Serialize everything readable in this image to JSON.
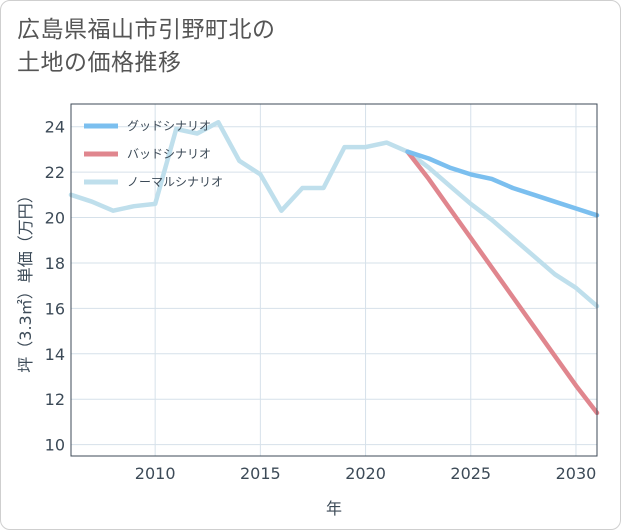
{
  "header": {
    "title_line1": "広島県福山市引野町北の",
    "title_line2": "土地の価格推移"
  },
  "chart_data": {
    "type": "line",
    "title": "広島県福山市引野町北の土地の価格推移",
    "xlabel": "年",
    "ylabel": "坪（3.3㎡）単価（万円）",
    "xlim": [
      2006,
      2031
    ],
    "ylim": [
      9.5,
      25
    ],
    "xticks": [
      2010,
      2015,
      2020,
      2025,
      2030
    ],
    "yticks": [
      10,
      12,
      14,
      16,
      18,
      20,
      22,
      24
    ],
    "legend_position": "top-left",
    "series": [
      {
        "name": "グッドシナリオ",
        "color": "#7bbfef",
        "x": [
          2022,
          2023,
          2024,
          2025,
          2026,
          2027,
          2028,
          2029,
          2030,
          2031
        ],
        "y": [
          22.9,
          22.6,
          22.2,
          21.9,
          21.7,
          21.3,
          21.0,
          20.7,
          20.4,
          20.1
        ]
      },
      {
        "name": "バッドシナリオ",
        "color": "#e0868e",
        "x": [
          2022,
          2023,
          2024,
          2025,
          2026,
          2027,
          2028,
          2029,
          2030,
          2031
        ],
        "y": [
          22.9,
          21.7,
          20.4,
          19.1,
          17.8,
          16.5,
          15.2,
          13.9,
          12.6,
          11.4
        ]
      },
      {
        "name": "ノーマルシナリオ",
        "color": "#bfdfec",
        "x": [
          2006,
          2007,
          2008,
          2009,
          2010,
          2011,
          2012,
          2013,
          2014,
          2015,
          2016,
          2017,
          2018,
          2019,
          2020,
          2021,
          2022,
          2023,
          2024,
          2025,
          2026,
          2027,
          2028,
          2029,
          2030,
          2031
        ],
        "y": [
          21.0,
          20.7,
          20.3,
          20.5,
          20.6,
          23.9,
          23.7,
          24.2,
          22.5,
          21.9,
          20.3,
          21.3,
          21.3,
          23.1,
          23.1,
          23.3,
          22.9,
          22.2,
          21.4,
          20.6,
          19.9,
          19.1,
          18.3,
          17.5,
          16.9,
          16.1
        ]
      }
    ]
  }
}
